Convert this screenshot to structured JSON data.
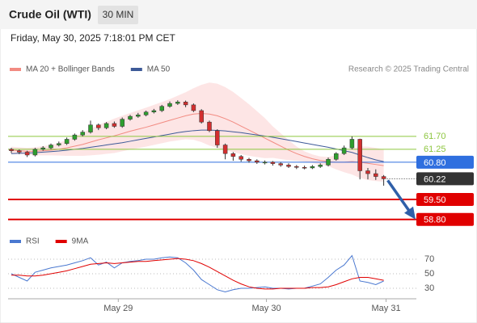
{
  "header": {
    "title": "Crude Oil (WTI)",
    "timeframe": "30 MIN",
    "datetime": "Friday, May 30, 2025 7:18:01 PM CET"
  },
  "chart_data": {
    "type": "candlestick",
    "legend": [
      {
        "name": "MA 20 + Bollinger Bands",
        "color": "#f28b82"
      },
      {
        "name": "MA 50",
        "color": "#3d5a98"
      }
    ],
    "source": "Research © 2025 Trading Central",
    "ylim": [
      58.4,
      63.8
    ],
    "ohlc": [
      [
        61.25,
        61.3,
        61.12,
        61.2
      ],
      [
        61.2,
        61.24,
        61.08,
        61.15
      ],
      [
        61.15,
        61.2,
        60.98,
        61.05
      ],
      [
        61.05,
        61.3,
        61.0,
        61.25
      ],
      [
        61.25,
        61.36,
        61.2,
        61.3
      ],
      [
        61.3,
        61.45,
        61.25,
        61.4
      ],
      [
        61.4,
        61.52,
        61.35,
        61.45
      ],
      [
        61.45,
        61.66,
        61.4,
        61.6
      ],
      [
        61.6,
        61.8,
        61.55,
        61.75
      ],
      [
        61.75,
        61.92,
        61.7,
        61.85
      ],
      [
        61.85,
        62.25,
        61.8,
        62.1
      ],
      [
        62.1,
        62.15,
        61.92,
        62.0
      ],
      [
        62.0,
        62.2,
        61.95,
        62.15
      ],
      [
        62.15,
        62.22,
        62.0,
        62.05
      ],
      [
        62.05,
        62.36,
        62.0,
        62.3
      ],
      [
        62.3,
        62.45,
        62.25,
        62.4
      ],
      [
        62.4,
        62.52,
        62.35,
        62.45
      ],
      [
        62.45,
        62.6,
        62.4,
        62.55
      ],
      [
        62.55,
        62.66,
        62.5,
        62.6
      ],
      [
        62.6,
        62.8,
        62.55,
        62.75
      ],
      [
        62.75,
        62.92,
        62.7,
        62.85
      ],
      [
        62.85,
        62.96,
        62.8,
        62.9
      ],
      [
        62.9,
        62.95,
        62.72,
        62.8
      ],
      [
        62.8,
        62.85,
        62.55,
        62.6
      ],
      [
        62.6,
        62.65,
        62.15,
        62.2
      ],
      [
        62.2,
        62.25,
        61.85,
        61.9
      ],
      [
        61.9,
        61.95,
        61.3,
        61.4
      ],
      [
        61.4,
        61.45,
        60.9,
        61.1
      ],
      [
        61.1,
        61.15,
        60.85,
        61.0
      ],
      [
        61.0,
        61.05,
        60.82,
        60.9
      ],
      [
        60.9,
        60.95,
        60.78,
        60.85
      ],
      [
        60.85,
        60.9,
        60.74,
        60.8
      ],
      [
        60.8,
        60.86,
        60.72,
        60.8
      ],
      [
        60.8,
        60.84,
        60.68,
        60.75
      ],
      [
        60.75,
        60.8,
        60.64,
        60.7
      ],
      [
        60.7,
        60.76,
        60.6,
        60.65
      ],
      [
        60.65,
        60.7,
        60.56,
        60.62
      ],
      [
        60.62,
        60.68,
        60.55,
        60.6
      ],
      [
        60.6,
        60.7,
        60.56,
        60.65
      ],
      [
        60.65,
        60.76,
        60.6,
        60.7
      ],
      [
        60.7,
        60.96,
        60.65,
        60.9
      ],
      [
        60.9,
        61.15,
        60.85,
        61.1
      ],
      [
        61.1,
        61.38,
        61.05,
        61.3
      ],
      [
        61.3,
        61.7,
        61.25,
        61.6
      ],
      [
        61.6,
        61.62,
        60.2,
        60.5
      ],
      [
        60.5,
        60.6,
        60.2,
        60.4
      ],
      [
        60.4,
        60.55,
        60.18,
        60.3
      ],
      [
        60.3,
        60.35,
        59.98,
        60.22
      ]
    ],
    "ma20": [
      61.22,
      61.2,
      61.18,
      61.18,
      61.2,
      61.22,
      61.25,
      61.3,
      61.36,
      61.42,
      61.5,
      61.58,
      61.65,
      61.72,
      61.8,
      61.88,
      61.95,
      62.02,
      62.1,
      62.18,
      62.26,
      62.34,
      62.42,
      62.48,
      62.5,
      62.48,
      62.42,
      62.32,
      62.2,
      62.06,
      61.92,
      61.78,
      61.64,
      61.5,
      61.36,
      61.22,
      61.1,
      61.0,
      60.92,
      60.86,
      60.82,
      60.8,
      60.8,
      60.82,
      60.8,
      60.76,
      60.72,
      60.68
    ],
    "ma50": [
      61.1,
      61.11,
      61.12,
      61.13,
      61.15,
      61.17,
      61.19,
      61.22,
      61.25,
      61.28,
      61.32,
      61.36,
      61.4,
      61.44,
      61.48,
      61.53,
      61.58,
      61.63,
      61.68,
      61.73,
      61.78,
      61.83,
      61.87,
      61.9,
      61.92,
      61.92,
      61.91,
      61.89,
      61.86,
      61.83,
      61.79,
      61.75,
      61.71,
      61.67,
      61.62,
      61.57,
      61.52,
      61.47,
      61.42,
      61.37,
      61.32,
      61.26,
      61.2,
      61.14,
      61.05,
      60.96,
      60.88,
      60.82
    ],
    "bb_upper": [
      61.34,
      61.32,
      61.3,
      61.32,
      61.36,
      61.4,
      61.47,
      61.58,
      61.7,
      61.82,
      61.96,
      62.1,
      62.21,
      62.32,
      62.42,
      62.52,
      62.61,
      62.7,
      62.8,
      62.9,
      63.0,
      63.12,
      63.24,
      63.38,
      63.5,
      63.58,
      63.54,
      63.42,
      63.25,
      63.04,
      62.82,
      62.58,
      62.34,
      62.05,
      61.81,
      61.57,
      61.35,
      61.18,
      61.07,
      61.0,
      60.98,
      61.05,
      61.15,
      61.27,
      61.35,
      61.34,
      61.3,
      61.24
    ],
    "bb_lower": [
      61.1,
      61.08,
      61.06,
      61.04,
      61.04,
      61.04,
      61.03,
      61.02,
      61.02,
      61.02,
      61.04,
      61.06,
      61.09,
      61.12,
      61.18,
      61.24,
      61.29,
      61.34,
      61.4,
      61.46,
      61.52,
      61.56,
      61.6,
      61.58,
      61.5,
      61.38,
      61.3,
      61.22,
      61.15,
      61.08,
      61.02,
      60.98,
      60.94,
      60.95,
      60.91,
      60.87,
      60.85,
      60.82,
      60.77,
      60.72,
      60.66,
      60.55,
      60.45,
      60.37,
      60.25,
      60.18,
      60.14,
      60.12
    ],
    "levels": [
      {
        "value": 61.7,
        "label": "61.70",
        "color": "#8dc63f",
        "box": false
      },
      {
        "value": 61.25,
        "label": "61.25",
        "color": "#8dc63f",
        "box": false
      },
      {
        "value": 60.8,
        "label": "60.80",
        "color": "#2f6fdf",
        "box": true
      },
      {
        "value": 60.22,
        "label": "60.22",
        "color": "#333333",
        "box": true,
        "dotted": true
      },
      {
        "value": 59.5,
        "label": "59.50",
        "color": "#e00000",
        "box": true
      },
      {
        "value": 58.8,
        "label": "58.80",
        "color": "#e00000",
        "box": true
      }
    ],
    "xticks": [
      {
        "value": 13.5,
        "label": "May 29"
      },
      {
        "value": 32.2,
        "label": "May 30"
      },
      {
        "value": 47.3,
        "label": "May 31"
      }
    ],
    "rsi": {
      "legend": [
        {
          "name": "RSI",
          "color": "#4a78d0"
        },
        {
          "name": "9MA",
          "color": "#e00000"
        }
      ],
      "ylim": [
        18,
        82
      ],
      "yticks": [
        70,
        50,
        30
      ],
      "rsi": [
        50,
        45,
        40,
        52,
        55,
        58,
        60,
        62,
        65,
        68,
        72,
        62,
        66,
        58,
        65,
        67,
        68,
        70,
        70,
        72,
        73,
        72,
        65,
        55,
        42,
        35,
        28,
        25,
        28,
        30,
        30,
        31,
        32,
        30,
        30,
        29,
        30,
        30,
        33,
        36,
        45,
        55,
        62,
        75,
        40,
        38,
        35,
        40
      ],
      "ma9": [
        48,
        48,
        47,
        47,
        48,
        50,
        52,
        54,
        57,
        60,
        63,
        64,
        65,
        64,
        65,
        66,
        67,
        67,
        68,
        69,
        70,
        71,
        70,
        68,
        64,
        59,
        53,
        47,
        41,
        36,
        32,
        30,
        29,
        29,
        30,
        30,
        30,
        30,
        31,
        31,
        32,
        35,
        39,
        43,
        45,
        45,
        43,
        41
      ]
    }
  }
}
